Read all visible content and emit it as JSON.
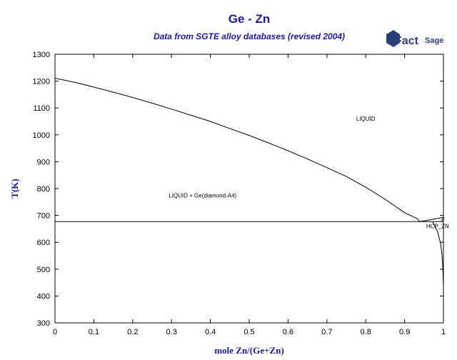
{
  "chart_data": {
    "type": "line",
    "title": "Ge - Zn",
    "subtitle": "Data from SGTE alloy databases (revised 2004)",
    "xlabel": "mole Zn/(Ge+Zn)",
    "ylabel": "T(K)",
    "xlim": [
      0,
      1
    ],
    "ylim": [
      300,
      1300
    ],
    "x_ticks": [
      "0",
      "0.1",
      "0.2",
      "0.3",
      "0.4",
      "0.5",
      "0.6",
      "0.7",
      "0.8",
      "0.9",
      "1"
    ],
    "y_ticks": [
      "300",
      "400",
      "500",
      "600",
      "700",
      "800",
      "900",
      "1000",
      "1100",
      "1200",
      "1300"
    ],
    "grid": false,
    "series": [
      {
        "x": [
          0,
          0.05,
          0.1,
          0.15,
          0.2,
          0.25,
          0.3,
          0.35,
          0.4,
          0.45,
          0.5,
          0.55,
          0.6,
          0.65,
          0.7,
          0.75,
          0.8,
          0.85,
          0.9,
          0.93,
          0.94
        ],
        "y": [
          1211,
          1196,
          1178,
          1159,
          1139,
          1118,
          1096,
          1073,
          1050,
          1024,
          998,
          970,
          941,
          910,
          878,
          845,
          805,
          760,
          710,
          690,
          677
        ]
      },
      {
        "x": [
          0,
          1
        ],
        "y": [
          677,
          677
        ]
      },
      {
        "x": [
          0.94,
          1
        ],
        "y": [
          677,
          693
        ]
      },
      {
        "x": [
          0.972,
          0.985,
          0.992,
          0.996,
          0.998,
          0.999,
          1.0
        ],
        "y": [
          677,
          640,
          600,
          560,
          520,
          480,
          440
        ]
      },
      {
        "x": [
          0.995,
          1
        ],
        "y": [
          677,
          693
        ]
      }
    ],
    "annotations": [
      {
        "text": "LIQUID",
        "x": 0.8,
        "y": 1060
      },
      {
        "text": "LIQUID + Ge(diamond-A4)",
        "x": 0.38,
        "y": 775
      },
      {
        "text": "HCP_ZN",
        "x": 0.985,
        "y": 660
      }
    ],
    "colors": {
      "title": "#1a1aa8",
      "lines": "#000000",
      "logo": "#2a3f7a"
    }
  },
  "logo": {
    "word": "Fact",
    "sage": "Sage"
  }
}
